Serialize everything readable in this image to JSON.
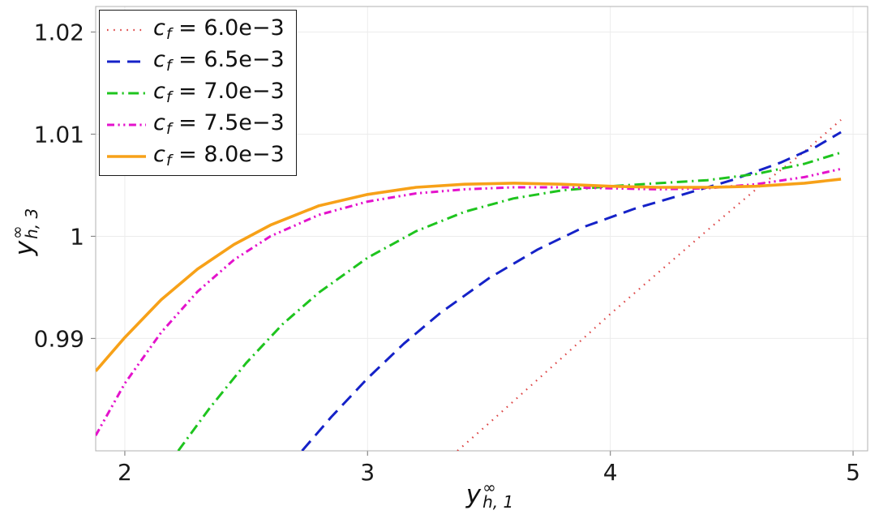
{
  "figure": {
    "background": "#ffffff",
    "x_axis_label": {
      "base": "y",
      "sup": "∞",
      "sub": "h, 1"
    },
    "y_axis_label": {
      "base": "y",
      "sup": "∞",
      "sub": "h, 3"
    }
  },
  "chart_data": {
    "type": "line",
    "title": "",
    "xlabel": "y^∞_{h,1}",
    "ylabel": "y^∞_{h,3}",
    "xlim": [
      1.88,
      5.06
    ],
    "ylim": [
      0.979,
      1.0225
    ],
    "grid": true,
    "grid_color": "#ececec",
    "border_color": "#b0b0b0",
    "legend_position": "upper-left",
    "x_ticks": [
      {
        "value": 2,
        "label": "2"
      },
      {
        "value": 3,
        "label": "3"
      },
      {
        "value": 4,
        "label": "4"
      },
      {
        "value": 5,
        "label": "5"
      }
    ],
    "y_ticks": [
      {
        "value": 0.99,
        "label": "0.99"
      },
      {
        "value": 1.0,
        "label": "1"
      },
      {
        "value": 1.01,
        "label": "1.01"
      },
      {
        "value": 1.02,
        "label": "1.02"
      }
    ],
    "series": [
      {
        "name": "c_f = 6.0e−3",
        "legend": {
          "var": "c",
          "sub": "f",
          "rest": " = 6.0e−3"
        },
        "color": "#dd4444",
        "style": "dotted",
        "width": 2.2,
        "points": [
          [
            3.37,
            0.979
          ],
          [
            3.5,
            0.9817
          ],
          [
            3.65,
            0.9849
          ],
          [
            3.8,
            0.9881
          ],
          [
            4.0,
            0.9924
          ],
          [
            4.2,
            0.9965
          ],
          [
            4.4,
            1.0006
          ],
          [
            4.6,
            1.0046
          ],
          [
            4.8,
            1.0083
          ],
          [
            4.95,
            1.0114
          ]
        ]
      },
      {
        "name": "c_f = 6.5e−3",
        "legend": {
          "var": "c",
          "sub": "f",
          "rest": " = 6.5e−3"
        },
        "color": "#1522c8",
        "style": "dashed",
        "width": 3,
        "points": [
          [
            2.73,
            0.979
          ],
          [
            2.85,
            0.9823
          ],
          [
            3.0,
            0.9861
          ],
          [
            3.15,
            0.9895
          ],
          [
            3.3,
            0.9925
          ],
          [
            3.5,
            0.9959
          ],
          [
            3.7,
            0.9987
          ],
          [
            3.9,
            1.001
          ],
          [
            4.1,
            1.0027
          ],
          [
            4.3,
            1.0041
          ],
          [
            4.5,
            1.0055
          ],
          [
            4.7,
            1.0072
          ],
          [
            4.85,
            1.0088
          ],
          [
            4.95,
            1.0102
          ]
        ]
      },
      {
        "name": "c_f = 7.0e−3",
        "legend": {
          "var": "c",
          "sub": "f",
          "rest": " = 7.0e−3"
        },
        "color": "#1ec41e",
        "style": "dashdot",
        "width": 3,
        "points": [
          [
            2.22,
            0.979
          ],
          [
            2.35,
            0.9832
          ],
          [
            2.5,
            0.9876
          ],
          [
            2.65,
            0.9914
          ],
          [
            2.8,
            0.9945
          ],
          [
            3.0,
            0.9979
          ],
          [
            3.2,
            1.0005
          ],
          [
            3.4,
            1.0024
          ],
          [
            3.6,
            1.0037
          ],
          [
            3.8,
            1.0045
          ],
          [
            4.0,
            1.0049
          ],
          [
            4.2,
            1.0052
          ],
          [
            4.4,
            1.0055
          ],
          [
            4.6,
            1.0061
          ],
          [
            4.8,
            1.0071
          ],
          [
            4.95,
            1.0082
          ]
        ]
      },
      {
        "name": "c_f = 7.5e−3",
        "legend": {
          "var": "c",
          "sub": "f",
          "rest": " = 7.5e−3"
        },
        "color": "#e412cc",
        "style": "dashdotdot",
        "width": 3,
        "points": [
          [
            1.88,
            0.9805
          ],
          [
            2.0,
            0.9856
          ],
          [
            2.15,
            0.9906
          ],
          [
            2.3,
            0.9946
          ],
          [
            2.45,
            0.9977
          ],
          [
            2.6,
            1.0
          ],
          [
            2.8,
            1.0021
          ],
          [
            3.0,
            1.0034
          ],
          [
            3.2,
            1.0042
          ],
          [
            3.4,
            1.0046
          ],
          [
            3.6,
            1.0048
          ],
          [
            3.8,
            1.0048
          ],
          [
            4.0,
            1.0047
          ],
          [
            4.2,
            1.0046
          ],
          [
            4.4,
            1.0047
          ],
          [
            4.6,
            1.0051
          ],
          [
            4.8,
            1.0058
          ],
          [
            4.95,
            1.0066
          ]
        ]
      },
      {
        "name": "c_f = 8.0e−3",
        "legend": {
          "var": "c",
          "sub": "f",
          "rest": " = 8.0e−3"
        },
        "color": "#f7a118",
        "style": "solid",
        "width": 3.6,
        "points": [
          [
            1.88,
            0.9868
          ],
          [
            2.0,
            0.9901
          ],
          [
            2.15,
            0.9938
          ],
          [
            2.3,
            0.9968
          ],
          [
            2.45,
            0.9992
          ],
          [
            2.6,
            1.0011
          ],
          [
            2.8,
            1.003
          ],
          [
            3.0,
            1.0041
          ],
          [
            3.2,
            1.0048
          ],
          [
            3.4,
            1.0051
          ],
          [
            3.6,
            1.0052
          ],
          [
            3.8,
            1.0051
          ],
          [
            4.0,
            1.0049
          ],
          [
            4.2,
            1.0048
          ],
          [
            4.4,
            1.0048
          ],
          [
            4.6,
            1.0049
          ],
          [
            4.8,
            1.0052
          ],
          [
            4.95,
            1.0056
          ]
        ]
      }
    ]
  }
}
